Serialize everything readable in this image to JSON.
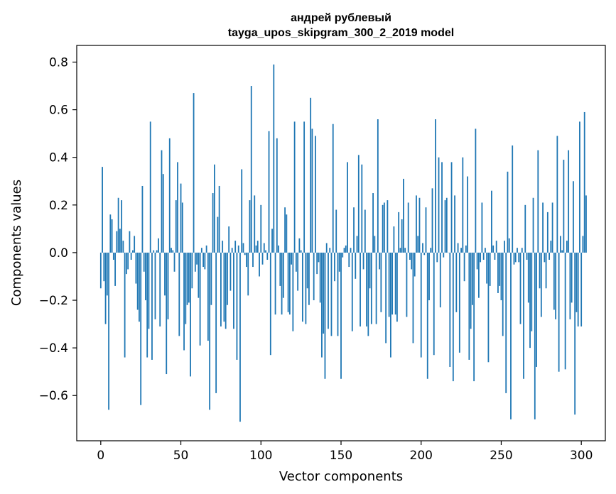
{
  "chart_data": {
    "type": "bar",
    "title": "андрей рублевый",
    "subtitle": "tayga_upos_skipgram_300_2_2019 model",
    "xlabel": "Vector components",
    "ylabel": "Components values",
    "xlim": [
      -15,
      315
    ],
    "ylim": [
      -0.79,
      0.87
    ],
    "xticks": [
      0,
      50,
      100,
      150,
      200,
      250,
      300
    ],
    "yticks": [
      -0.6,
      -0.4,
      -0.2,
      0.0,
      0.2,
      0.4,
      0.6,
      0.8
    ],
    "ytick_labels": [
      "−0.6",
      "−0.4",
      "−0.2",
      "0.0",
      "0.2",
      "0.4",
      "0.6",
      "0.8"
    ],
    "bar_color": "#1f77b4",
    "grid": false,
    "values": [
      -0.15,
      0.36,
      -0.12,
      -0.3,
      -0.18,
      -0.66,
      0.16,
      0.14,
      -0.03,
      -0.14,
      0.09,
      0.23,
      0.1,
      0.22,
      0.05,
      -0.44,
      -0.09,
      -0.07,
      0.09,
      -0.03,
      0.01,
      0.07,
      -0.13,
      -0.24,
      -0.29,
      -0.64,
      0.28,
      -0.08,
      -0.2,
      -0.44,
      -0.32,
      0.55,
      -0.45,
      0.01,
      -0.28,
      0.01,
      0.06,
      -0.31,
      0.43,
      0.33,
      -0.18,
      -0.51,
      -0.28,
      0.48,
      0.02,
      0.01,
      -0.08,
      0.22,
      0.38,
      -0.35,
      0.29,
      0.21,
      -0.41,
      -0.3,
      -0.22,
      -0.21,
      -0.52,
      -0.15,
      0.67,
      -0.08,
      -0.05,
      -0.19,
      -0.39,
      0.02,
      -0.06,
      -0.07,
      0.03,
      -0.37,
      -0.66,
      -0.22,
      0.25,
      0.37,
      -0.59,
      0.15,
      0.28,
      -0.31,
      0.05,
      -0.29,
      -0.32,
      -0.22,
      0.11,
      -0.16,
      0.02,
      -0.32,
      0.05,
      -0.45,
      0.03,
      -0.71,
      0.35,
      0.04,
      -0.01,
      -0.06,
      -0.18,
      0.22,
      0.7,
      -0.06,
      0.24,
      0.03,
      0.05,
      -0.1,
      0.2,
      -0.05,
      0.04,
      0.01,
      -0.03,
      0.51,
      -0.43,
      0.1,
      0.79,
      -0.26,
      0.48,
      0.03,
      -0.14,
      -0.26,
      -0.19,
      0.19,
      0.16,
      -0.25,
      -0.26,
      -0.05,
      -0.33,
      0.55,
      -0.08,
      -0.16,
      0.06,
      0.01,
      -0.29,
      0.55,
      -0.3,
      -0.15,
      -0.22,
      0.65,
      0.52,
      -0.2,
      0.49,
      -0.09,
      -0.04,
      -0.21,
      -0.44,
      -0.34,
      -0.53,
      0.04,
      -0.32,
      0.02,
      -0.35,
      0.54,
      -0.12,
      0.18,
      -0.35,
      -0.08,
      -0.53,
      -0.02,
      0.02,
      0.03,
      0.38,
      -0.06,
      0.02,
      -0.33,
      0.19,
      -0.11,
      0.07,
      0.41,
      -0.31,
      0.37,
      -0.07,
      0.18,
      -0.31,
      -0.35,
      -0.15,
      -0.3,
      0.25,
      0.07,
      -0.3,
      0.56,
      -0.07,
      -0.25,
      0.2,
      0.21,
      -0.38,
      0.22,
      -0.27,
      -0.44,
      -0.26,
      0.11,
      -0.26,
      -0.29,
      0.17,
      0.02,
      0.14,
      0.31,
      0.02,
      -0.27,
      0.21,
      -0.03,
      -0.07,
      -0.38,
      -0.1,
      0.24,
      0.07,
      0.23,
      -0.44,
      0.04,
      -0.01,
      0.19,
      -0.53,
      -0.2,
      0.02,
      0.27,
      -0.43,
      0.56,
      -0.04,
      0.4,
      -0.23,
      0.38,
      -0.02,
      0.22,
      0.23,
      0.0,
      -0.48,
      0.38,
      -0.54,
      0.24,
      -0.25,
      0.04,
      -0.42,
      0.02,
      0.4,
      -0.12,
      0.03,
      0.32,
      -0.45,
      -0.32,
      -0.22,
      -0.54,
      0.52,
      -0.07,
      -0.19,
      -0.04,
      0.21,
      -0.03,
      0.02,
      -0.13,
      -0.46,
      -0.14,
      0.26,
      0.03,
      -0.03,
      0.05,
      -0.17,
      -0.14,
      -0.2,
      -0.35,
      0.05,
      -0.59,
      0.34,
      0.06,
      -0.7,
      0.45,
      -0.05,
      -0.04,
      0.02,
      -0.04,
      -0.3,
      0.02,
      -0.53,
      0.2,
      -0.03,
      -0.21,
      -0.4,
      -0.33,
      0.23,
      -0.7,
      -0.48,
      0.43,
      -0.15,
      -0.27,
      0.21,
      -0.04,
      -0.15,
      0.17,
      -0.03,
      0.05,
      0.21,
      -0.24,
      -0.28,
      0.49,
      -0.5,
      0.07,
      0.01,
      0.39,
      -0.49,
      0.05,
      0.43,
      -0.28,
      -0.21,
      0.3,
      -0.68,
      -0.25,
      -0.31,
      0.55,
      -0.31,
      0.07,
      0.59,
      0.24
    ]
  }
}
